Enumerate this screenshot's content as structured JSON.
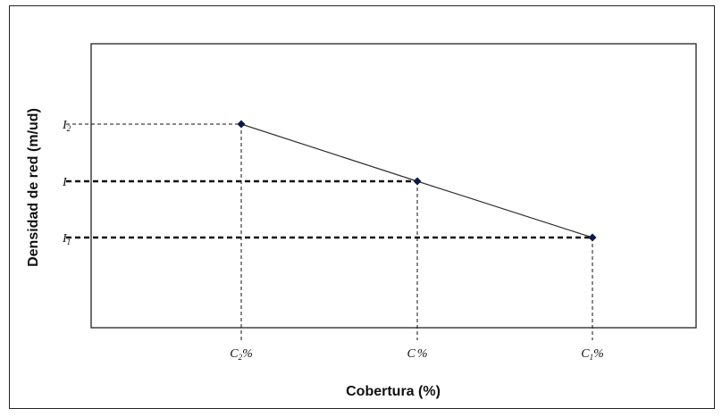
{
  "chart_data": {
    "type": "line",
    "title": "",
    "xlabel": "Cobertura (%)",
    "ylabel": "Densidad de red (m/ud)",
    "x_ticks": [
      {
        "main": "C",
        "sub": "2",
        "suffix": "%"
      },
      {
        "main": "C",
        "sub": "",
        "suffix": "%"
      },
      {
        "main": "C",
        "sub": "1",
        "suffix": "%"
      }
    ],
    "y_ticks": [
      {
        "main": "I",
        "sub": "2"
      },
      {
        "main": "I",
        "sub": ""
      },
      {
        "main": "I",
        "sub": "1"
      }
    ],
    "points": [
      {
        "x": "C2%",
        "y": "I2"
      },
      {
        "x": "C%",
        "y": "I"
      },
      {
        "x": "C1%",
        "y": "I1"
      }
    ],
    "guide_lines": [
      {
        "level": "I2",
        "style": "thin-dashed"
      },
      {
        "level": "I",
        "style": "bold-dashed"
      },
      {
        "level": "I1",
        "style": "bold-dashed"
      }
    ],
    "line_color": "#333333",
    "marker_color": "#0d1a4a",
    "grid": false
  }
}
